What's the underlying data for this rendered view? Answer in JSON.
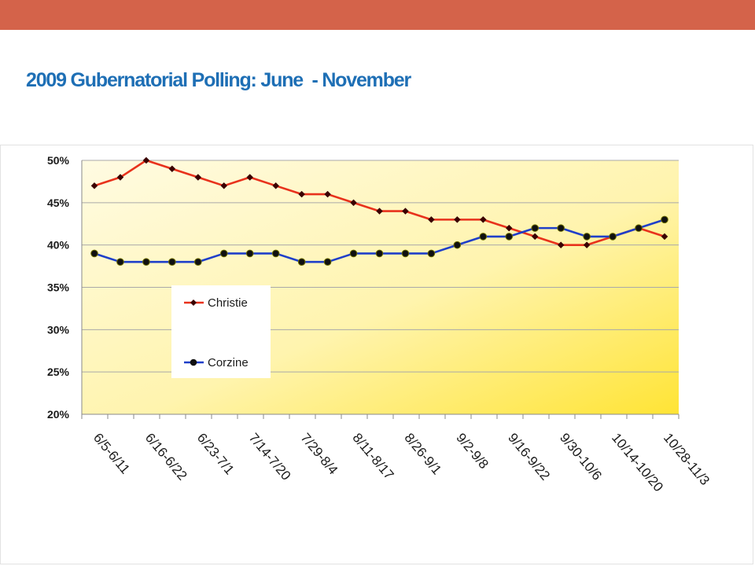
{
  "header": {
    "bar_color": "#d4634a",
    "title": "2009 Gubernatorial Polling: June  - November",
    "title_color": "#1e6fb5"
  },
  "chart_data": {
    "type": "line",
    "title": "",
    "xlabel": "",
    "ylabel": "",
    "ylim": [
      20,
      50
    ],
    "yticks": [
      20,
      25,
      30,
      35,
      40,
      45,
      50
    ],
    "ytick_labels": [
      "20%",
      "25%",
      "30%",
      "35%",
      "40%",
      "45%",
      "50%"
    ],
    "grid": true,
    "legend_position": "center-left",
    "categories": [
      "6/5-6/11",
      "",
      "6/16-6/22",
      "",
      "6/23-7/1",
      "",
      "7/14-7/20",
      "",
      "7/29-8/4",
      "",
      "8/11-8/17",
      "",
      "8/26-9/1",
      "",
      "9/2-9/8",
      "",
      "9/16-9/22",
      "",
      "9/30-10/6",
      "",
      "10/14-10/20",
      "",
      "10/28-11/3"
    ],
    "series": [
      {
        "name": "Christie",
        "color": "#e8321c",
        "marker": "diamond",
        "values": [
          47,
          48,
          50,
          49,
          48,
          47,
          48,
          47,
          46,
          46,
          45,
          44,
          44,
          43,
          43,
          43,
          42,
          41,
          40,
          40,
          41,
          42,
          41
        ]
      },
      {
        "name": "Corzine",
        "color": "#1f3fc9",
        "marker": "circle",
        "values": [
          39,
          38,
          38,
          38,
          38,
          39,
          39,
          39,
          38,
          38,
          39,
          39,
          39,
          39,
          40,
          41,
          41,
          42,
          42,
          41,
          41,
          42,
          43
        ]
      }
    ]
  }
}
